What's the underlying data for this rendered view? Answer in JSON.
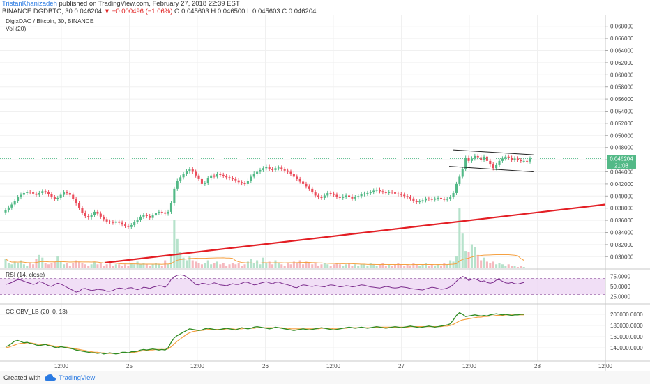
{
  "header": {
    "author": "TristanKhanizadeh",
    "published": " published on TradingView.com, February 27, 2018 22:39 EST",
    "symbol_line_prefix": "BINANCE:DGDBTC, 30  0.046204 ",
    "change_arrow": "▼",
    "change": " −0.000496 (−1.06%)",
    "ohlc": " O:0.045603  H:0.046500  L:0.045603  C:0.046204"
  },
  "legend": {
    "title": "DigixDAO / Bitcoin, 30, BINANCE",
    "vol": "Vol (20)",
    "rsi": "RSI (14, close)",
    "cciobv": "CCIOBV_LB (20, 0, 13)"
  },
  "price_badge": "0.046204",
  "countdown_badge": "21:03",
  "footer": {
    "created": "Created with",
    "brand": "TradingView"
  },
  "colors": {
    "up": "#53b987",
    "down": "#eb4d5c",
    "trend": "#e31e24",
    "rsi": "#7b2b8c",
    "obv": "#2e8b22",
    "signal": "#f5a142"
  },
  "chart_data": [
    {
      "type": "candlestick",
      "name": "price",
      "x_tick_labels": [
        "12:00",
        "25",
        "12:00",
        "26",
        "12:00",
        "27",
        "12:00",
        "28",
        "12:00"
      ],
      "ylim": [
        0.029,
        0.069
      ],
      "y_ticks": [
        "0.030000",
        "0.032000",
        "0.034000",
        "0.036000",
        "0.038000",
        "0.040000",
        "0.042000",
        "0.044000",
        "0.046000",
        "0.048000",
        "0.050000",
        "0.052000",
        "0.054000",
        "0.056000",
        "0.058000",
        "0.060000",
        "0.062000",
        "0.064000",
        "0.066000",
        "0.068000"
      ],
      "close": [
        0.0377,
        0.0381,
        0.0386,
        0.0392,
        0.0398,
        0.0402,
        0.0405,
        0.0407,
        0.0406,
        0.0404,
        0.0402,
        0.0405,
        0.0408,
        0.0406,
        0.0403,
        0.0398,
        0.0395,
        0.0397,
        0.0402,
        0.0406,
        0.0405,
        0.0402,
        0.0395,
        0.0388,
        0.038,
        0.0372,
        0.0367,
        0.0365,
        0.0369,
        0.0374,
        0.0371,
        0.0366,
        0.0362,
        0.0358,
        0.0357,
        0.0356,
        0.0358,
        0.0356,
        0.0353,
        0.0351,
        0.0349,
        0.0352,
        0.0357,
        0.0361,
        0.0366,
        0.0369,
        0.0367,
        0.0364,
        0.0368,
        0.0372,
        0.0374,
        0.0373,
        0.0371,
        0.0374,
        0.0388,
        0.0412,
        0.0425,
        0.0431,
        0.0436,
        0.0441,
        0.0445,
        0.044,
        0.0434,
        0.0428,
        0.042,
        0.0422,
        0.043,
        0.0434,
        0.0432,
        0.0436,
        0.0435,
        0.0433,
        0.0431,
        0.043,
        0.0428,
        0.0426,
        0.0423,
        0.0421,
        0.042,
        0.0425,
        0.0432,
        0.0437,
        0.044,
        0.0443,
        0.0446,
        0.0448,
        0.0445,
        0.0443,
        0.0446,
        0.0447,
        0.0444,
        0.0442,
        0.044,
        0.0437,
        0.0432,
        0.0428,
        0.0424,
        0.042,
        0.0416,
        0.0412,
        0.0406,
        0.0401,
        0.0398,
        0.0397,
        0.0401,
        0.0405,
        0.0404,
        0.0402,
        0.0399,
        0.0397,
        0.0399,
        0.0401,
        0.0399,
        0.0396,
        0.0398,
        0.04,
        0.0403,
        0.0404,
        0.0405,
        0.0406,
        0.0409,
        0.041,
        0.0408,
        0.0406,
        0.0405,
        0.0407,
        0.0406,
        0.0404,
        0.0403,
        0.0402,
        0.04,
        0.0398,
        0.0396,
        0.0392,
        0.039,
        0.0391,
        0.0393,
        0.0396,
        0.0395,
        0.0394,
        0.0396,
        0.0397,
        0.0395,
        0.0394,
        0.0395,
        0.0398,
        0.0405,
        0.042,
        0.0432,
        0.0445,
        0.0463,
        0.0458,
        0.0462,
        0.0466,
        0.0464,
        0.046,
        0.0465,
        0.0458,
        0.0452,
        0.0446,
        0.0451,
        0.0458,
        0.0462,
        0.0465,
        0.0463,
        0.046,
        0.0462,
        0.0459,
        0.0458,
        0.0458,
        0.0457,
        0.0462
      ],
      "trendline": {
        "from": [
          0.0,
          0.029
        ],
        "to": [
          1.0,
          0.0386
        ]
      },
      "channel_upper": {
        "from": [
          0.0476
        ],
        "to": [
          0.0468
        ]
      },
      "channel_lower": {
        "from": [
          0.0449
        ],
        "to": [
          0.044
        ]
      },
      "last_price": 0.046204
    },
    {
      "type": "bar",
      "name": "volume",
      "values": [
        7,
        4,
        3,
        5,
        4,
        6,
        3,
        2,
        4,
        3,
        7,
        10,
        8,
        4,
        3,
        4,
        5,
        9,
        5,
        3,
        4,
        2,
        4,
        6,
        5,
        4,
        3,
        2,
        3,
        5,
        3,
        4,
        2,
        3,
        4,
        2,
        3,
        3,
        2,
        3,
        2,
        4,
        3,
        5,
        3,
        4,
        3,
        2,
        3,
        4,
        3,
        2,
        6,
        3,
        9,
        36,
        22,
        12,
        8,
        6,
        9,
        6,
        5,
        4,
        3,
        4,
        6,
        3,
        4,
        5,
        3,
        4,
        2,
        3,
        4,
        3,
        4,
        2,
        3,
        5,
        7,
        4,
        6,
        3,
        8,
        4,
        5,
        3,
        6,
        4,
        3,
        2,
        4,
        3,
        5,
        4,
        6,
        3,
        5,
        4,
        3,
        4,
        2,
        3,
        4,
        3,
        2,
        3,
        4,
        3,
        2,
        3,
        4,
        2,
        3,
        2,
        3,
        3,
        2,
        4,
        3,
        2,
        3,
        4,
        2,
        3,
        2,
        3,
        4,
        3,
        2,
        3,
        2,
        4,
        3,
        2,
        3,
        4,
        2,
        3,
        2,
        3,
        2,
        4,
        3,
        6,
        5,
        9,
        45,
        26,
        13,
        12,
        18,
        16,
        10,
        6,
        8,
        5,
        4,
        5,
        3,
        4,
        3,
        2,
        3,
        2,
        2,
        1,
        2,
        1
      ]
    },
    {
      "type": "line",
      "name": "rsi",
      "ylim": [
        10,
        90
      ],
      "y_ticks": [
        "25.0000",
        "50.0000",
        "75.0000"
      ],
      "bands": [
        30,
        70
      ],
      "values": [
        55,
        57,
        60,
        64,
        67,
        66,
        63,
        60,
        58,
        55,
        57,
        62,
        60,
        56,
        52,
        50,
        55,
        58,
        56,
        52,
        48,
        44,
        40,
        36,
        38,
        44,
        45,
        42,
        40,
        41,
        43,
        42,
        41,
        38,
        38,
        40,
        44,
        46,
        45,
        43,
        46,
        47,
        44,
        42,
        44,
        48,
        47,
        45,
        48,
        50,
        52,
        51,
        48,
        55,
        68,
        74,
        78,
        79,
        78,
        74,
        68,
        62,
        55,
        54,
        58,
        57,
        55,
        56,
        59,
        57,
        54,
        53,
        52,
        54,
        57,
        55,
        55,
        58,
        61,
        60,
        57,
        54,
        55,
        58,
        60,
        62,
        59,
        57,
        60,
        61,
        58,
        56,
        54,
        52,
        48,
        47,
        51,
        54,
        53,
        51,
        50,
        52,
        51,
        50,
        49,
        52,
        54,
        53,
        51,
        49,
        50,
        52,
        51,
        49,
        50,
        52,
        54,
        53,
        51,
        49,
        48,
        47,
        46,
        48,
        50,
        49,
        47,
        46,
        47,
        49,
        48,
        47,
        45,
        44,
        43,
        42,
        41,
        44,
        46,
        48,
        47,
        45,
        43,
        44,
        46,
        49,
        55,
        63,
        70,
        75,
        72,
        65,
        68,
        69,
        66,
        62,
        64,
        60,
        58,
        60,
        66,
        67,
        63,
        59,
        58,
        60,
        57,
        56,
        58,
        60
      ]
    },
    {
      "type": "line",
      "name": "cciobv",
      "ylim": [
        120000,
        215000
      ],
      "y_ticks": [
        "140000.0000",
        "160000.0000",
        "180000.0000",
        "200000.0000"
      ],
      "series": [
        {
          "name": "obv",
          "values": [
            142000,
            144000,
            148000,
            152000,
            153000,
            151000,
            149000,
            150000,
            148000,
            147000,
            145000,
            144000,
            145000,
            146000,
            144000,
            143000,
            141000,
            140000,
            142000,
            141000,
            140000,
            139000,
            138000,
            136000,
            135000,
            134000,
            133000,
            132000,
            131000,
            131000,
            130000,
            131000,
            129000,
            130000,
            131000,
            130000,
            129000,
            130000,
            132000,
            132000,
            131000,
            133000,
            133000,
            134000,
            136000,
            137000,
            136000,
            137000,
            138000,
            137000,
            136000,
            137000,
            136000,
            140000,
            150000,
            158000,
            162000,
            165000,
            168000,
            171000,
            174000,
            173000,
            172000,
            171000,
            172000,
            174000,
            175000,
            174000,
            173000,
            172000,
            173000,
            174000,
            175000,
            174000,
            173000,
            172000,
            174000,
            176000,
            175000,
            174000,
            175000,
            177000,
            178000,
            177000,
            176000,
            175000,
            174000,
            175000,
            177000,
            176000,
            175000,
            174000,
            173000,
            172000,
            171000,
            172000,
            173000,
            174000,
            173000,
            172000,
            173000,
            174000,
            175000,
            176000,
            175000,
            174000,
            173000,
            172000,
            173000,
            174000,
            175000,
            176000,
            177000,
            176000,
            175000,
            176000,
            177000,
            176000,
            175000,
            176000,
            177000,
            178000,
            177000,
            176000,
            175000,
            176000,
            177000,
            178000,
            177000,
            176000,
            177000,
            178000,
            179000,
            178000,
            177000,
            176000,
            177000,
            178000,
            179000,
            178000,
            177000,
            178000,
            179000,
            180000,
            181000,
            183000,
            190000,
            198000,
            203000,
            200000,
            196000,
            197000,
            198000,
            199000,
            198000,
            197000,
            198000,
            197000,
            199000,
            200000,
            201000,
            200000,
            199000,
            200000,
            199000,
            198000,
            199000,
            199000,
            200000,
            200000
          ]
        },
        {
          "name": "signal",
          "values": [
            140000,
            141000,
            143000,
            145000,
            147000,
            148000,
            148000,
            149000,
            149000,
            148000,
            147000,
            146000,
            146000,
            146000,
            145000,
            144000,
            143000,
            142000,
            142000,
            141000,
            141000,
            140000,
            139000,
            138000,
            137000,
            136000,
            135000,
            134000,
            133000,
            132000,
            132000,
            131000,
            131000,
            130000,
            130000,
            130000,
            130000,
            130000,
            131000,
            131000,
            131000,
            132000,
            132000,
            133000,
            134000,
            135000,
            135000,
            136000,
            136000,
            137000,
            137000,
            137000,
            137000,
            138000,
            142000,
            147000,
            152000,
            156000,
            160000,
            164000,
            167000,
            169000,
            170000,
            171000,
            171000,
            172000,
            173000,
            173000,
            173000,
            173000,
            173000,
            173000,
            174000,
            174000,
            174000,
            173000,
            174000,
            174000,
            175000,
            175000,
            175000,
            175000,
            176000,
            176000,
            176000,
            176000,
            176000,
            176000,
            176000,
            176000,
            176000,
            175000,
            175000,
            174000,
            174000,
            174000,
            174000,
            174000,
            174000,
            174000,
            174000,
            174000,
            174000,
            175000,
            175000,
            175000,
            175000,
            174000,
            174000,
            174000,
            175000,
            175000,
            176000,
            176000,
            176000,
            176000,
            176000,
            176000,
            176000,
            176000,
            176000,
            177000,
            177000,
            177000,
            177000,
            177000,
            177000,
            177000,
            177000,
            177000,
            177000,
            177000,
            178000,
            178000,
            178000,
            178000,
            178000,
            178000,
            178000,
            178000,
            178000,
            178000,
            178000,
            179000,
            179000,
            180000,
            182000,
            185000,
            188000,
            190000,
            191000,
            192000,
            193000,
            194000,
            195000,
            195000,
            196000,
            196000,
            197000,
            197000,
            198000,
            198000,
            198000,
            199000,
            199000,
            199000,
            199000,
            199000,
            199000,
            199000
          ]
        }
      ]
    }
  ]
}
